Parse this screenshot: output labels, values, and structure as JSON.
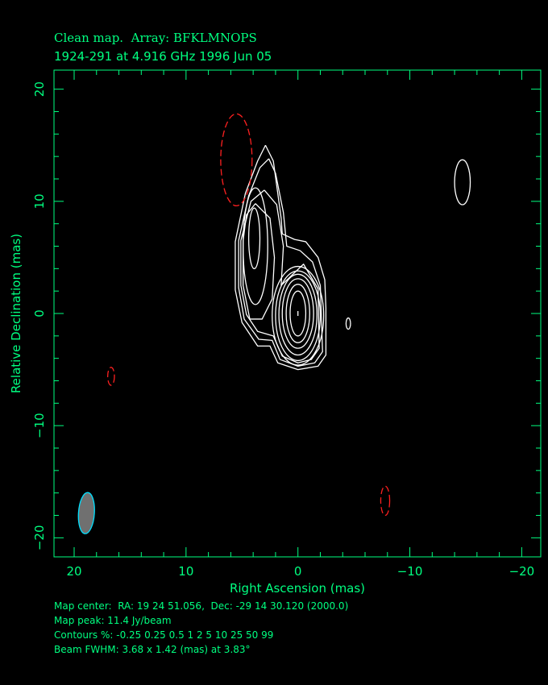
{
  "title_line1": "Clean map.  Array: BFKLMNOPS",
  "title_line2": "1924-291 at 4.916 GHz 1996 Jun 05",
  "footer": {
    "map_center": "Map center:  RA: 19 24 51.056,  Dec: -29 14 30.120 (2000.0)",
    "map_peak": "Map peak: 11.4 Jy/beam",
    "contours": "Contours %: -0.25 0.25 0.5 1 2 5 10 25 50 99",
    "beam": "Beam FWHM: 3.68 x 1.42 (mas) at 3.83°"
  },
  "chart_data": {
    "type": "contour",
    "xlabel": "Right Ascension  (mas)",
    "ylabel": "Relative Declination  (mas)",
    "xlim": [
      21.8,
      -21.7
    ],
    "ylim": [
      -21.7,
      21.7
    ],
    "xticks": [
      20,
      10,
      0,
      -10,
      -20
    ],
    "yticks": [
      20,
      10,
      0,
      -10,
      -20
    ],
    "xtick_labels": [
      "20",
      "10",
      "0",
      "−10",
      "−20"
    ],
    "ytick_labels": [
      "20",
      "10",
      "0",
      "−10",
      "−20"
    ],
    "map_peak_jy_per_beam": 11.4,
    "contour_levels_percent": [
      -0.25,
      0.25,
      0.5,
      1,
      2,
      5,
      10,
      25,
      50,
      99
    ],
    "colors": {
      "axes": "#00ff80",
      "positive": "#ffffff",
      "negative": "#ff2020",
      "beam_fill": "#707070",
      "beam_edge": "#00e0ff"
    },
    "positive_polylines": [
      [
        [
          2.9,
          15.0
        ],
        [
          2.2,
          13.6
        ],
        [
          1.8,
          10.7
        ],
        [
          1.5,
          8.5
        ],
        [
          1.4,
          7.1
        ],
        [
          0.3,
          6.6
        ],
        [
          -0.7,
          6.4
        ],
        [
          -1.8,
          5.0
        ],
        [
          -2.4,
          3.0
        ],
        [
          -2.5,
          0.5
        ],
        [
          -2.5,
          -3.7
        ],
        [
          -1.8,
          -4.7
        ],
        [
          0,
          -5.0
        ],
        [
          1.8,
          -4.4
        ],
        [
          2.5,
          -2.9
        ],
        [
          3.6,
          -2.9
        ],
        [
          5.0,
          -0.8
        ],
        [
          5.6,
          2.1
        ],
        [
          5.6,
          6.4
        ],
        [
          4.7,
          10.7
        ],
        [
          3.6,
          13.6
        ],
        [
          2.9,
          15.0
        ]
      ],
      [
        [
          2.6,
          13.8
        ],
        [
          2.0,
          12.5
        ],
        [
          1.3,
          9.0
        ],
        [
          1.0,
          6.0
        ],
        [
          -0.2,
          5.6
        ],
        [
          -1.3,
          4.6
        ],
        [
          -2.0,
          2.5
        ],
        [
          -2.2,
          -3.4
        ],
        [
          -1.5,
          -4.4
        ],
        [
          0,
          -4.7
        ],
        [
          1.6,
          -4.1
        ],
        [
          2.3,
          -2.4
        ],
        [
          3.5,
          -2.3
        ],
        [
          4.8,
          -0.5
        ],
        [
          5.3,
          2.3
        ],
        [
          5.3,
          6.5
        ],
        [
          4.4,
          10.5
        ],
        [
          3.4,
          13.0
        ],
        [
          2.6,
          13.8
        ]
      ],
      [
        [
          3.0,
          11.0
        ],
        [
          1.9,
          9.7
        ],
        [
          1.3,
          6.0
        ],
        [
          1.5,
          2.5
        ],
        [
          -0.5,
          4.4
        ],
        [
          -1.8,
          2.2
        ],
        [
          -1.9,
          -3.1
        ],
        [
          -1.2,
          -4.1
        ],
        [
          0,
          -4.4
        ],
        [
          1.4,
          -3.8
        ],
        [
          2.2,
          -2.0
        ],
        [
          3.6,
          -1.6
        ],
        [
          4.6,
          -0.1
        ],
        [
          5.1,
          2.5
        ],
        [
          5.1,
          6.5
        ],
        [
          4.2,
          10.0
        ],
        [
          3.0,
          11.0
        ]
      ],
      [
        [
          3.8,
          9.8
        ],
        [
          2.5,
          8.5
        ],
        [
          2.1,
          5.0
        ],
        [
          2.3,
          1.3
        ],
        [
          3.2,
          -0.5
        ],
        [
          4.3,
          -0.5
        ],
        [
          4.9,
          2.5
        ],
        [
          4.9,
          6.5
        ],
        [
          4.6,
          8.8
        ],
        [
          3.8,
          9.8
        ]
      ]
    ],
    "positive_ellipses": [
      {
        "cx": 3.8,
        "cy": 6.0,
        "rx": 1.1,
        "ry": 5.2
      },
      {
        "cx": 3.9,
        "cy": 6.7,
        "rx": 0.5,
        "ry": 2.7
      },
      {
        "cx": 0,
        "cy": -0.2,
        "rx": 2.3,
        "ry": 4.4
      },
      {
        "cx": 0,
        "cy": -0.2,
        "rx": 2.0,
        "ry": 4.0
      },
      {
        "cx": 0,
        "cy": -0.1,
        "rx": 1.7,
        "ry": 3.6
      },
      {
        "cx": 0,
        "cy": 0,
        "rx": 1.4,
        "ry": 3.1
      },
      {
        "cx": 0,
        "cy": 0,
        "rx": 1.05,
        "ry": 2.6
      },
      {
        "cx": 0,
        "cy": 0,
        "rx": 0.7,
        "ry": 2.0
      },
      {
        "cx": -14.7,
        "cy": 11.7,
        "rx": 0.7,
        "ry": 2.0
      },
      {
        "cx": -4.5,
        "cy": -0.9,
        "rx": 0.2,
        "ry": 0.5
      }
    ],
    "negative_ellipses": [
      {
        "cx": 5.5,
        "cy": 13.7,
        "rx": 1.4,
        "ry": 4.1
      },
      {
        "cx": 16.7,
        "cy": -5.6,
        "rx": 0.3,
        "ry": 0.8
      },
      {
        "cx": -7.8,
        "cy": -16.7,
        "rx": 0.4,
        "ry": 1.3
      }
    ],
    "beam": {
      "cx": 18.9,
      "cy": -17.8,
      "major_mas": 3.68,
      "minor_mas": 1.42,
      "pa_deg": 3.83
    }
  }
}
